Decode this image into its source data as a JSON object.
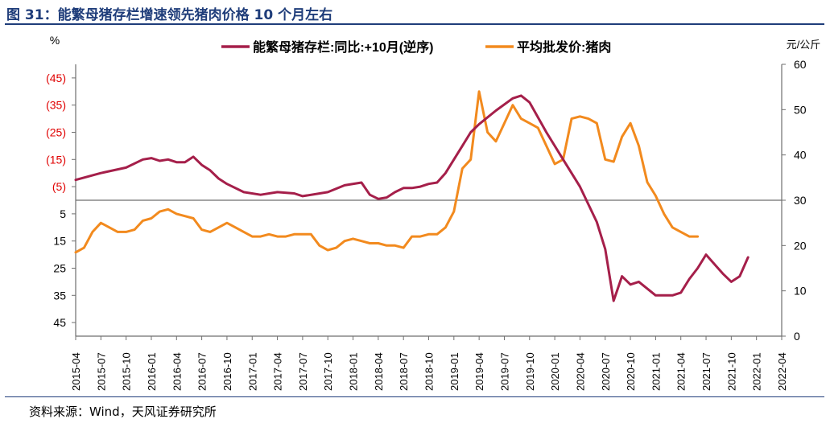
{
  "header": {
    "title": "图 31：能繁母猪存栏增速领先猪肉价格 10 个月左右"
  },
  "footer": {
    "source": "资料来源：Wind，天风证券研究所"
  },
  "colors": {
    "series_sow": "#a51f4a",
    "series_price": "#f28a1e",
    "axis": "#6f6f6f",
    "negative_tick": "#e00000",
    "title": "#1f3d7a"
  },
  "chart_data": {
    "type": "line",
    "title": "",
    "left_axis": {
      "unit_label": "%",
      "range": [
        -50,
        50
      ],
      "reversed": true,
      "ticks": [
        -45,
        -35,
        -25,
        -15,
        -5,
        5,
        15,
        25,
        35,
        45
      ],
      "tick_labels": [
        "(45)",
        "(35)",
        "(25)",
        "(15)",
        "(5)",
        "5",
        "15",
        "25",
        "35",
        "45"
      ]
    },
    "right_axis": {
      "unit_label": "元/公斤",
      "range": [
        0,
        60
      ],
      "ticks": [
        0,
        10,
        20,
        30,
        40,
        50,
        60
      ],
      "tick_labels": [
        "0",
        "10",
        "20",
        "30",
        "40",
        "50",
        "60"
      ]
    },
    "x_axis": {
      "start": "2015-04",
      "end": "2022-04",
      "tick_labels": [
        "2015-04",
        "2015-07",
        "2015-10",
        "2016-01",
        "2016-04",
        "2016-07",
        "2016-10",
        "2017-01",
        "2017-04",
        "2017-07",
        "2017-10",
        "2018-01",
        "2018-04",
        "2018-07",
        "2018-10",
        "2019-01",
        "2019-04",
        "2019-07",
        "2019-10",
        "2020-01",
        "2020-04",
        "2020-07",
        "2020-10",
        "2021-01",
        "2021-04",
        "2021-07",
        "2021-10",
        "2022-01",
        "2022-04"
      ]
    },
    "legend": {
      "position": "top-center"
    },
    "series": [
      {
        "name": "能繁母猪存栏:同比:+10月(逆序)",
        "axis": "left-reversed",
        "points": [
          [
            0,
            -7.5
          ],
          [
            3,
            -10
          ],
          [
            6,
            -12
          ],
          [
            8,
            -15
          ],
          [
            9,
            -15.5
          ],
          [
            10,
            -14.5
          ],
          [
            11,
            -15
          ],
          [
            12,
            -14
          ],
          [
            13,
            -14
          ],
          [
            14,
            -16
          ],
          [
            15,
            -13
          ],
          [
            16,
            -11
          ],
          [
            17,
            -8
          ],
          [
            18,
            -6
          ],
          [
            20,
            -3
          ],
          [
            22,
            -2
          ],
          [
            24,
            -3
          ],
          [
            26,
            -2.5
          ],
          [
            27,
            -1.5
          ],
          [
            30,
            -3
          ],
          [
            32,
            -5.5
          ],
          [
            34,
            -6.5
          ],
          [
            35,
            -2
          ],
          [
            36,
            -0.5
          ],
          [
            37,
            -1
          ],
          [
            38,
            -3
          ],
          [
            39,
            -4.5
          ],
          [
            40,
            -4.5
          ],
          [
            41,
            -5
          ],
          [
            42,
            -6
          ],
          [
            43,
            -6.5
          ],
          [
            44,
            -10
          ],
          [
            46,
            -20
          ],
          [
            47,
            -25
          ],
          [
            48,
            -28
          ],
          [
            50,
            -33
          ],
          [
            52,
            -37.5
          ],
          [
            53,
            -38.5
          ],
          [
            54,
            -36
          ],
          [
            56,
            -25
          ],
          [
            58,
            -15
          ],
          [
            60,
            -5
          ],
          [
            62,
            8
          ],
          [
            63,
            18
          ],
          [
            64,
            37
          ],
          [
            65,
            28
          ],
          [
            66,
            31
          ],
          [
            67,
            30
          ],
          [
            69,
            35
          ],
          [
            71,
            35
          ],
          [
            72,
            34
          ],
          [
            73,
            29
          ],
          [
            74,
            25
          ],
          [
            75,
            20
          ],
          [
            77,
            27
          ],
          [
            78,
            30
          ],
          [
            79,
            28
          ],
          [
            80,
            21
          ]
        ]
      },
      {
        "name": "平均批发价:猪肉",
        "axis": "right",
        "points": [
          [
            0,
            18.5
          ],
          [
            1,
            19.5
          ],
          [
            2,
            23
          ],
          [
            3,
            25
          ],
          [
            4,
            24
          ],
          [
            5,
            23
          ],
          [
            6,
            23
          ],
          [
            7,
            23.5
          ],
          [
            8,
            25.5
          ],
          [
            9,
            26
          ],
          [
            10,
            27.5
          ],
          [
            11,
            28
          ],
          [
            12,
            27
          ],
          [
            13,
            26.5
          ],
          [
            14,
            26
          ],
          [
            15,
            23.5
          ],
          [
            16,
            23
          ],
          [
            17,
            24
          ],
          [
            18,
            25
          ],
          [
            19,
            24
          ],
          [
            20,
            23
          ],
          [
            21,
            22
          ],
          [
            22,
            22
          ],
          [
            23,
            22.5
          ],
          [
            24,
            22
          ],
          [
            25,
            22
          ],
          [
            26,
            22.5
          ],
          [
            27,
            22.5
          ],
          [
            28,
            22.5
          ],
          [
            29,
            20
          ],
          [
            30,
            19
          ],
          [
            31,
            19.5
          ],
          [
            32,
            21
          ],
          [
            33,
            21.5
          ],
          [
            34,
            21
          ],
          [
            35,
            20.5
          ],
          [
            36,
            20.5
          ],
          [
            37,
            20
          ],
          [
            38,
            20
          ],
          [
            39,
            19.5
          ],
          [
            40,
            22
          ],
          [
            41,
            22
          ],
          [
            42,
            22.5
          ],
          [
            43,
            22.5
          ],
          [
            44,
            24
          ],
          [
            45,
            27.5
          ],
          [
            46,
            37
          ],
          [
            47,
            39
          ],
          [
            48,
            54
          ],
          [
            49,
            45
          ],
          [
            50,
            43
          ],
          [
            51,
            47
          ],
          [
            52,
            51
          ],
          [
            53,
            48
          ],
          [
            54,
            47
          ],
          [
            55,
            46
          ],
          [
            56,
            42
          ],
          [
            57,
            38
          ],
          [
            58,
            39
          ],
          [
            59,
            48
          ],
          [
            60,
            48.5
          ],
          [
            61,
            48
          ],
          [
            62,
            47
          ],
          [
            63,
            39
          ],
          [
            64,
            38.5
          ],
          [
            65,
            44
          ],
          [
            66,
            47
          ],
          [
            67,
            42
          ],
          [
            68,
            34
          ],
          [
            69,
            31
          ],
          [
            70,
            27
          ],
          [
            71,
            24
          ],
          [
            72,
            23
          ],
          [
            73,
            22
          ],
          [
            74,
            22
          ]
        ]
      }
    ],
    "zero_line": {
      "left_value": 0
    }
  }
}
